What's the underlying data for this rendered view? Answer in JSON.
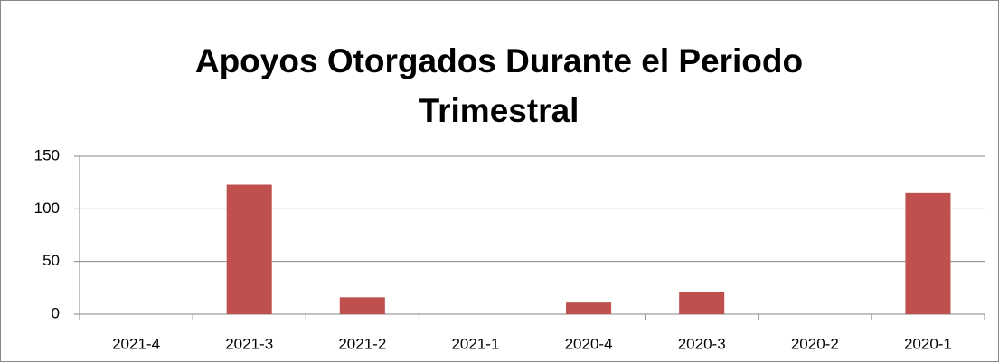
{
  "chart_data": {
    "type": "bar",
    "title": "Apoyos Otorgados Durante el Periodo Trimestral",
    "categories": [
      "2021-4",
      "2021-3",
      "2021-2",
      "2021-1",
      "2020-4",
      "2020-3",
      "2020-2",
      "2020-1"
    ],
    "values": [
      0,
      123,
      16,
      0,
      11,
      21,
      0,
      115
    ],
    "color": "#c0504d",
    "ylim": [
      0,
      150
    ],
    "yticks": [
      0,
      50,
      100,
      150
    ],
    "grid": true
  }
}
